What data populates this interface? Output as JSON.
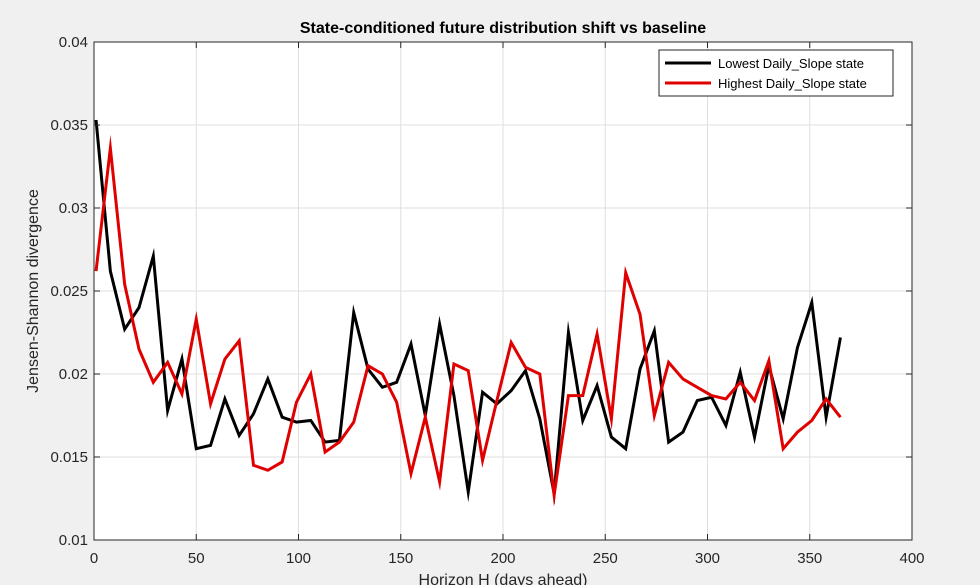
{
  "chart_data": {
    "type": "line",
    "title": "State-conditioned future distribution shift vs baseline",
    "xlabel": "Horizon H (days ahead)",
    "ylabel": "Jensen-Shannon divergence",
    "xlim": [
      0,
      400
    ],
    "ylim": [
      0.01,
      0.04
    ],
    "xticks": [
      0,
      50,
      100,
      150,
      200,
      250,
      300,
      350,
      400
    ],
    "yticks": [
      0.01,
      0.015,
      0.02,
      0.025,
      0.03,
      0.035,
      0.04
    ],
    "xtick_labels": [
      "0",
      "50",
      "100",
      "150",
      "200",
      "250",
      "300",
      "350",
      "400"
    ],
    "ytick_labels": [
      "0.01",
      "0.015",
      "0.02",
      "0.025",
      "0.03",
      "0.035",
      "0.04"
    ],
    "grid": true,
    "legend_position": "top-right",
    "x": [
      1,
      8,
      15,
      22,
      29,
      36,
      43,
      50,
      57,
      64,
      71,
      78,
      85,
      92,
      99,
      106,
      113,
      120,
      127,
      134,
      141,
      148,
      155,
      162,
      169,
      176,
      183,
      190,
      197,
      204,
      211,
      218,
      225,
      232,
      239,
      246,
      253,
      260,
      267,
      274,
      281,
      288,
      295,
      302,
      309,
      316,
      323,
      330,
      337,
      344,
      351,
      358,
      365
    ],
    "series": [
      {
        "name": "Lowest Daily_Slope state",
        "color": "#000000",
        "values": [
          0.0353,
          0.0262,
          0.0227,
          0.024,
          0.0271,
          0.0178,
          0.0209,
          0.0155,
          0.0157,
          0.0185,
          0.0163,
          0.0176,
          0.0197,
          0.0174,
          0.0171,
          0.0172,
          0.0159,
          0.016,
          0.0237,
          0.0203,
          0.0192,
          0.0195,
          0.0218,
          0.0175,
          0.023,
          0.0187,
          0.0129,
          0.0189,
          0.0182,
          0.019,
          0.0202,
          0.0173,
          0.0128,
          0.0225,
          0.0172,
          0.0193,
          0.0162,
          0.0155,
          0.0203,
          0.0226,
          0.0159,
          0.0165,
          0.0184,
          0.0186,
          0.0169,
          0.0201,
          0.0162,
          0.0205,
          0.0173,
          0.0216,
          0.0243,
          0.0174,
          0.0222
        ]
      },
      {
        "name": "Highest Daily_Slope state",
        "color": "#e00000",
        "values": [
          0.0262,
          0.0336,
          0.0254,
          0.0215,
          0.0195,
          0.0207,
          0.0188,
          0.0233,
          0.0182,
          0.0209,
          0.022,
          0.0145,
          0.0142,
          0.0147,
          0.0183,
          0.02,
          0.0153,
          0.0159,
          0.0171,
          0.0205,
          0.02,
          0.0183,
          0.014,
          0.0174,
          0.0135,
          0.0206,
          0.0202,
          0.0148,
          0.0184,
          0.0219,
          0.0204,
          0.02,
          0.0127,
          0.0187,
          0.0187,
          0.0224,
          0.0173,
          0.0261,
          0.0236,
          0.0175,
          0.0207,
          0.0197,
          0.0192,
          0.0187,
          0.0185,
          0.0195,
          0.0184,
          0.0208,
          0.0155,
          0.0165,
          0.0172,
          0.0185,
          0.0174
        ]
      }
    ]
  }
}
